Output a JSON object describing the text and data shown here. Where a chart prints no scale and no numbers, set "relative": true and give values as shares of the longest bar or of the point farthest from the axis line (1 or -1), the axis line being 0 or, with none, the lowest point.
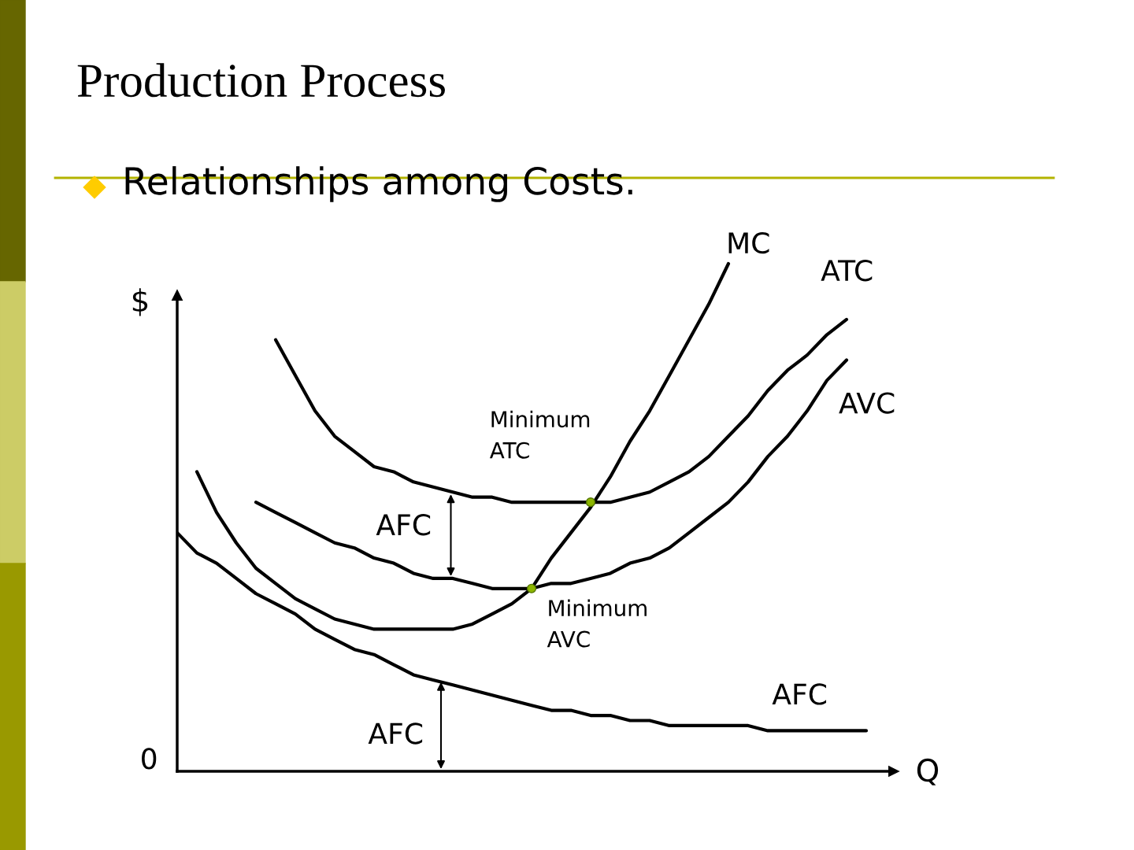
{
  "chart_data": {
    "type": "line",
    "relative": true,
    "title": "Production Process",
    "subtitle": "Relationships among Costs.",
    "xlabel": "Q",
    "ylabel": "$",
    "annotations": [
      "Minimum\nATC",
      "Minimum\nAVC",
      "AFC",
      "AFC",
      "0"
    ],
    "categories": [
      null,
      null,
      null,
      null,
      null,
      null,
      null,
      null,
      null,
      null,
      null,
      null,
      null,
      null,
      null,
      null,
      null,
      null,
      null,
      null,
      null,
      null,
      null,
      null,
      null,
      null,
      null,
      null,
      null,
      null,
      null,
      null,
      null,
      null,
      null,
      null,
      null
    ],
    "series": [
      {
        "name": "MC",
        "color": "#000000",
        "values": [
          null,
          0.59,
          0.51,
          0.45,
          0.4,
          0.37,
          0.34,
          0.32,
          0.3,
          0.29,
          0.28,
          0.28,
          0.28,
          0.28,
          0.28,
          0.29,
          0.31,
          0.33,
          0.36,
          0.42,
          0.47,
          0.52,
          0.58,
          0.65,
          0.71,
          0.78,
          0.85,
          0.92,
          1.0,
          null,
          null,
          null,
          null,
          null,
          null,
          null,
          null
        ]
      },
      {
        "name": "ATC",
        "color": "#000000",
        "values": [
          null,
          null,
          null,
          null,
          null,
          0.85,
          0.78,
          0.71,
          0.66,
          0.63,
          0.6,
          0.59,
          0.57,
          0.56,
          0.55,
          0.54,
          0.54,
          0.53,
          0.53,
          0.53,
          0.53,
          0.53,
          0.53,
          0.54,
          0.55,
          0.57,
          0.59,
          0.62,
          0.66,
          0.7,
          0.75,
          0.79,
          0.82,
          0.86,
          0.89,
          null,
          null
        ]
      },
      {
        "name": "AVC",
        "color": "#000000",
        "values": [
          null,
          null,
          null,
          null,
          0.53,
          0.51,
          0.49,
          0.47,
          0.45,
          0.44,
          0.42,
          0.41,
          0.39,
          0.38,
          0.38,
          0.37,
          0.36,
          0.36,
          0.36,
          0.37,
          0.37,
          0.38,
          0.39,
          0.41,
          0.42,
          0.44,
          0.47,
          0.5,
          0.53,
          0.57,
          0.62,
          0.66,
          0.71,
          0.77,
          0.81,
          null,
          null
        ]
      },
      {
        "name": "AFC",
        "color": "#000000",
        "values": [
          0.47,
          0.43,
          0.41,
          0.38,
          0.35,
          0.33,
          0.31,
          0.28,
          0.26,
          0.24,
          0.23,
          0.21,
          0.19,
          0.18,
          0.17,
          0.16,
          0.15,
          0.14,
          0.13,
          0.12,
          0.12,
          0.11,
          0.11,
          0.1,
          0.1,
          0.09,
          0.09,
          0.09,
          0.09,
          0.09,
          0.08,
          0.08,
          0.08,
          0.08,
          0.08,
          0.08,
          null
        ]
      }
    ]
  }
}
